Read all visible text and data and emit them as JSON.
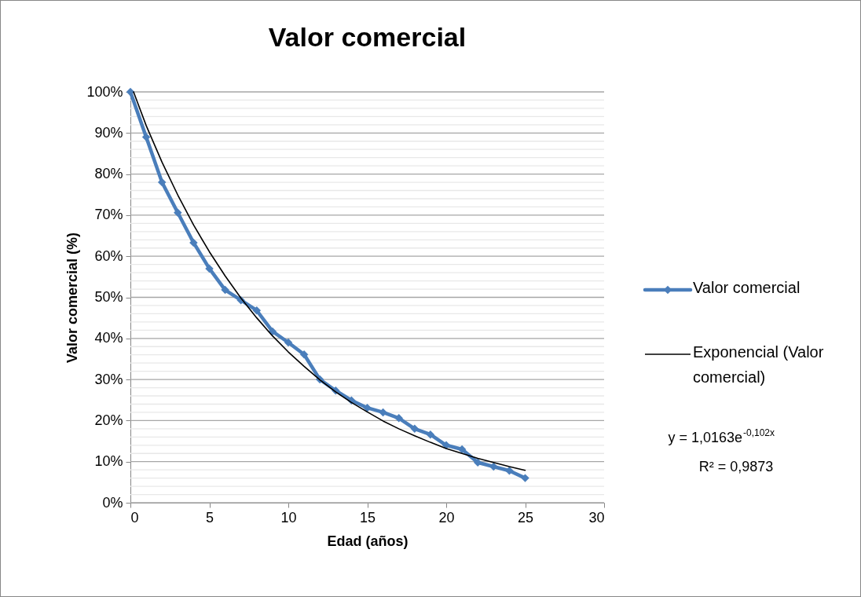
{
  "chart_data": {
    "type": "line",
    "title": "Valor comercial",
    "xlabel": "Edad (años)",
    "ylabel": "Valor comercial (%)",
    "xlim": [
      0,
      30
    ],
    "xticks": [
      0,
      5,
      10,
      15,
      20,
      25,
      30
    ],
    "ylim": [
      0,
      100
    ],
    "yticks": [
      {
        "value": 0,
        "label": "0%"
      },
      {
        "value": 2,
        "label": null
      },
      {
        "value": 4,
        "label": null
      },
      {
        "value": 6,
        "label": null
      },
      {
        "value": 8,
        "label": null
      },
      {
        "value": 10,
        "label": "10%"
      },
      {
        "value": 12,
        "label": null
      },
      {
        "value": 14,
        "label": null
      },
      {
        "value": 16,
        "label": null
      },
      {
        "value": 18,
        "label": null
      },
      {
        "value": 20,
        "label": "20%"
      },
      {
        "value": 22,
        "label": null
      },
      {
        "value": 24,
        "label": null
      },
      {
        "value": 26,
        "label": null
      },
      {
        "value": 28,
        "label": null
      },
      {
        "value": 30,
        "label": "30%"
      },
      {
        "value": 32,
        "label": null
      },
      {
        "value": 34,
        "label": null
      },
      {
        "value": 36,
        "label": null
      },
      {
        "value": 38,
        "label": null
      },
      {
        "value": 40,
        "label": "40%"
      },
      {
        "value": 42,
        "label": null
      },
      {
        "value": 44,
        "label": null
      },
      {
        "value": 46,
        "label": null
      },
      {
        "value": 48,
        "label": null
      },
      {
        "value": 50,
        "label": "50%"
      },
      {
        "value": 52,
        "label": null
      },
      {
        "value": 54,
        "label": null
      },
      {
        "value": 56,
        "label": null
      },
      {
        "value": 58,
        "label": null
      },
      {
        "value": 60,
        "label": "60%"
      },
      {
        "value": 62,
        "label": null
      },
      {
        "value": 64,
        "label": null
      },
      {
        "value": 66,
        "label": null
      },
      {
        "value": 68,
        "label": null
      },
      {
        "value": 70,
        "label": "70%"
      },
      {
        "value": 72,
        "label": null
      },
      {
        "value": 74,
        "label": null
      },
      {
        "value": 76,
        "label": null
      },
      {
        "value": 78,
        "label": null
      },
      {
        "value": 80,
        "label": "80%"
      },
      {
        "value": 82,
        "label": null
      },
      {
        "value": 84,
        "label": null
      },
      {
        "value": 86,
        "label": null
      },
      {
        "value": 88,
        "label": null
      },
      {
        "value": 90,
        "label": "90%"
      },
      {
        "value": 92,
        "label": null
      },
      {
        "value": 94,
        "label": null
      },
      {
        "value": 96,
        "label": null
      },
      {
        "value": 98,
        "label": null
      },
      {
        "value": 100,
        "label": "100%"
      }
    ],
    "grid": "y",
    "legend": "right",
    "marker": "diamond",
    "line_style": "solid",
    "series": [
      {
        "name": "Valor comercial",
        "color": "#4a7ebb",
        "x": [
          0,
          1,
          2,
          3,
          4,
          5,
          6,
          7,
          8,
          9,
          10,
          11,
          12,
          13,
          14,
          15,
          16,
          17,
          18,
          19,
          20,
          21,
          22,
          23,
          24,
          25
        ],
        "values": [
          100,
          89,
          78,
          70.6,
          63.3,
          57,
          51.8,
          49.3,
          46.8,
          41.7,
          39,
          36.1,
          30,
          27.3,
          24.9,
          23.1,
          22,
          20.6,
          18,
          16.6,
          14,
          13,
          9.8,
          8.8,
          7.8,
          6
        ]
      },
      {
        "name": "Exponencial (Valor comercial)",
        "type": "line",
        "marker": "none",
        "color": "#000000",
        "x": [
          0.2,
          1,
          2,
          3,
          4,
          5,
          6,
          7,
          8,
          9,
          10,
          11,
          12,
          13,
          14,
          15,
          16,
          17,
          18,
          19,
          20,
          21,
          22,
          23,
          24,
          25
        ],
        "values": [
          100,
          91.8,
          82.9,
          74.9,
          67.6,
          61.1,
          55.2,
          49.8,
          45,
          40.6,
          36.7,
          33.2,
          29.9,
          27,
          24.4,
          22.1,
          19.9,
          18,
          16.3,
          14.7,
          13.2,
          12,
          10.8,
          9.8,
          8.8,
          7.9
        ]
      }
    ],
    "annotations": [
      "y = 1,0163e$^{-0,102x}$",
      "R² = 0,9873"
    ]
  }
}
